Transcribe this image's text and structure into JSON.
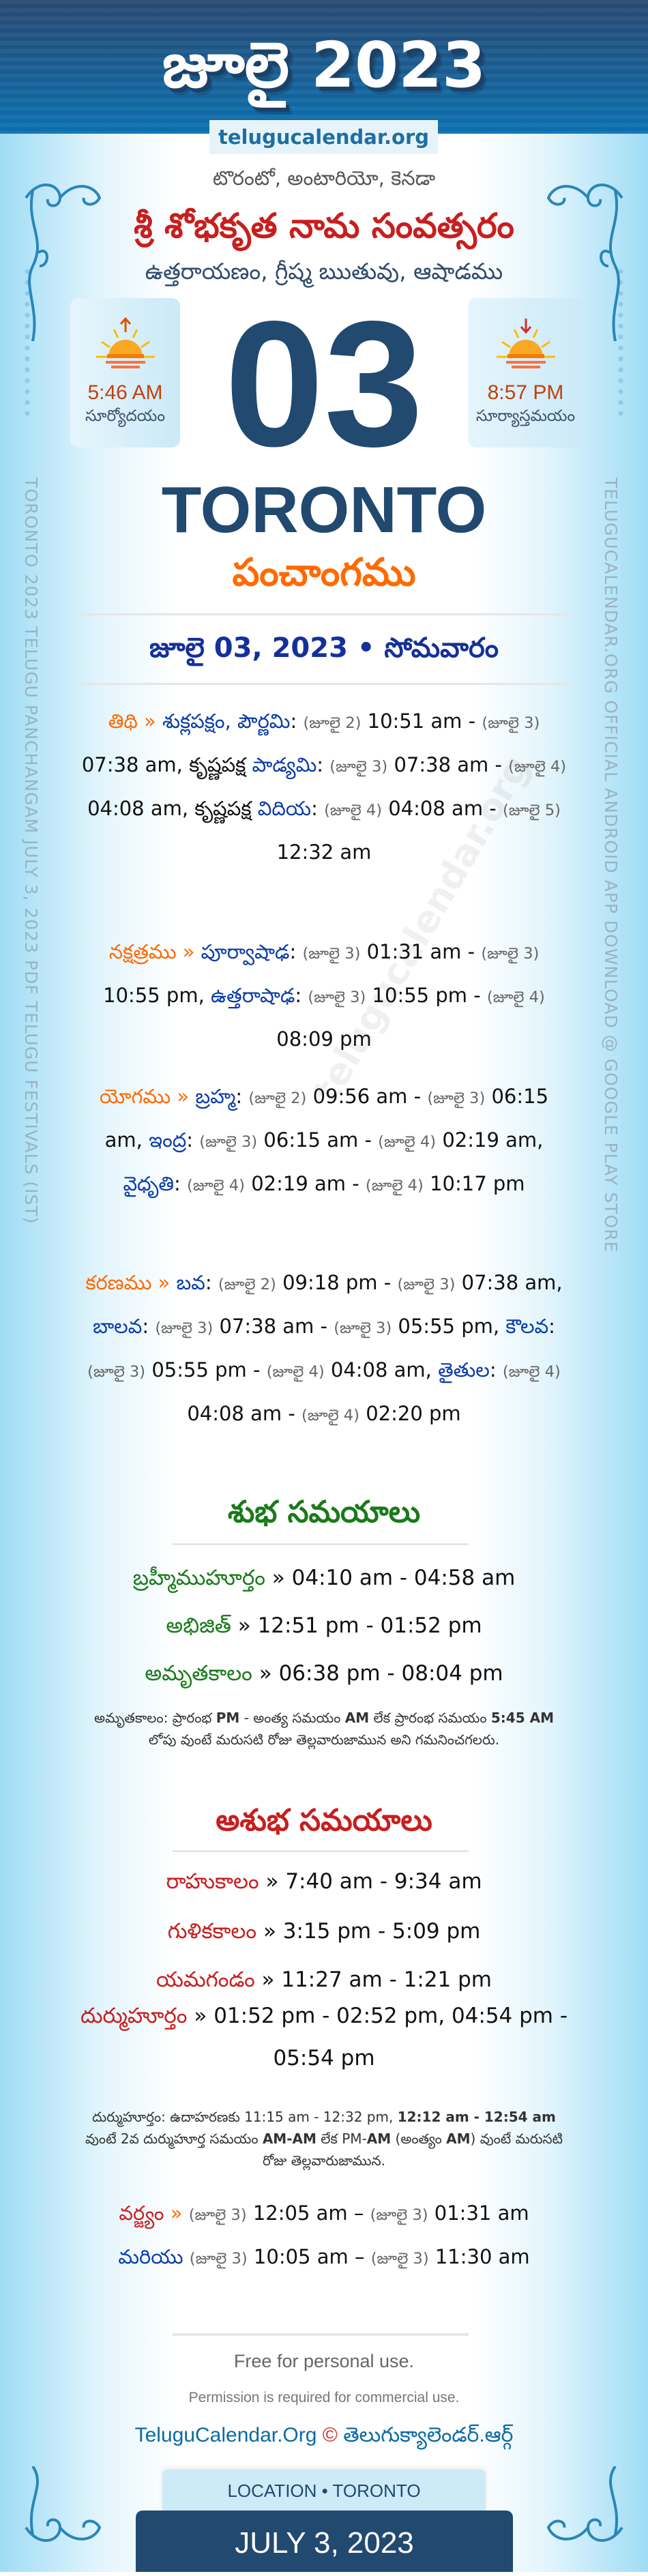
{
  "header": {
    "title": "జూలై 2023",
    "site": "telugucalendar.org"
  },
  "location_te": "టొరంటో, అంటారియో, కెనడా",
  "samvatsaram": "శ్రీ శోభకృత నామ సంవత్సరం",
  "ayanam": "ఉత్తరాయణం, గ్రీష్మ ఋతువు, ఆషాడము",
  "sunrise": {
    "time": "5:46 AM",
    "label": "సూర్యోదయం",
    "icon": "sunrise-icon"
  },
  "sunset": {
    "time": "8:57 PM",
    "label": "సూర్యాస్తమయం",
    "icon": "sunset-icon"
  },
  "day": "03",
  "city": "TORONTO",
  "panchangam_title": "పంచాంగము",
  "date_line": "జూలై 03, 2023 • సోమవారం",
  "side_left": "TORONTO 2023 TELUGU PANCHANGAM JULY 3, 2023 PDF TELUGU FESTIVALS (IST)",
  "side_right": "TELUGUCALENDAR.ORG OFFICIAL ANDROID APP DOWNLOAD @ GOOGLE PLAY STORE",
  "watermark": "telugucalendar.org",
  "panchang": [
    {
      "label": "తిథి",
      "segments": [
        {
          "k": "s",
          "v": " » "
        },
        {
          "k": "n",
          "v": "శుక్లపక్షం, పౌర్ణమి"
        },
        {
          "k": "t",
          "v": ": "
        },
        {
          "k": "d",
          "v": "(జూలై 2)"
        },
        {
          "k": "t",
          "v": " 10:51 am - "
        },
        {
          "k": "d",
          "v": "(జూలై 3)"
        },
        {
          "k": "t",
          "v": " 07:38 am, కృష్ణపక్ష "
        },
        {
          "k": "n",
          "v": "పాడ్యమి"
        },
        {
          "k": "t",
          "v": ": "
        },
        {
          "k": "d",
          "v": "(జూలై 3)"
        },
        {
          "k": "t",
          "v": " 07:38 am - "
        },
        {
          "k": "d",
          "v": "(జూలై 4)"
        },
        {
          "k": "t",
          "v": " 04:08 am, కృష్ణపక్ష "
        },
        {
          "k": "n",
          "v": "విదియ"
        },
        {
          "k": "t",
          "v": ": "
        },
        {
          "k": "d",
          "v": "(జూలై 4)"
        },
        {
          "k": "t",
          "v": " 04:08 am - "
        },
        {
          "k": "d",
          "v": "(జూలై 5)"
        },
        {
          "k": "t",
          "v": " 12:32 am"
        }
      ]
    },
    {
      "label": "నక్షత్రము",
      "segments": [
        {
          "k": "s",
          "v": " » "
        },
        {
          "k": "n",
          "v": "పూర్వాషాఢ"
        },
        {
          "k": "t",
          "v": ": "
        },
        {
          "k": "d",
          "v": "(జూలై 3)"
        },
        {
          "k": "t",
          "v": " 01:31 am - "
        },
        {
          "k": "d",
          "v": "(జూలై 3)"
        },
        {
          "k": "t",
          "v": " 10:55 pm, "
        },
        {
          "k": "n",
          "v": "ఉత్తరాషాఢ"
        },
        {
          "k": "t",
          "v": ": "
        },
        {
          "k": "d",
          "v": "(జూలై 3)"
        },
        {
          "k": "t",
          "v": " 10:55 pm - "
        },
        {
          "k": "d",
          "v": "(జూలై 4)"
        },
        {
          "k": "t",
          "v": " 08:09 pm"
        }
      ]
    },
    {
      "label": "యోగము",
      "segments": [
        {
          "k": "s",
          "v": " » "
        },
        {
          "k": "n",
          "v": "బ్రహ్మ"
        },
        {
          "k": "t",
          "v": ": "
        },
        {
          "k": "d",
          "v": "(జూలై 2)"
        },
        {
          "k": "t",
          "v": " 09:56 am - "
        },
        {
          "k": "d",
          "v": "(జూలై 3)"
        },
        {
          "k": "t",
          "v": " 06:15 am, "
        },
        {
          "k": "n",
          "v": "ఇంద్ర"
        },
        {
          "k": "t",
          "v": ": "
        },
        {
          "k": "d",
          "v": "(జూలై 3)"
        },
        {
          "k": "t",
          "v": " 06:15 am - "
        },
        {
          "k": "d",
          "v": "(జూలై 4)"
        },
        {
          "k": "t",
          "v": " 02:19 am, "
        },
        {
          "k": "n",
          "v": "వైధృతి"
        },
        {
          "k": "t",
          "v": ": "
        },
        {
          "k": "d",
          "v": "(జూలై 4)"
        },
        {
          "k": "t",
          "v": " 02:19 am - "
        },
        {
          "k": "d",
          "v": "(జూలై 4)"
        },
        {
          "k": "t",
          "v": " 10:17 pm"
        }
      ]
    },
    {
      "label": "కరణము",
      "segments": [
        {
          "k": "s",
          "v": " » "
        },
        {
          "k": "n",
          "v": "బవ"
        },
        {
          "k": "t",
          "v": ": "
        },
        {
          "k": "d",
          "v": "(జూలై 2)"
        },
        {
          "k": "t",
          "v": " 09:18 pm - "
        },
        {
          "k": "d",
          "v": "(జూలై 3)"
        },
        {
          "k": "t",
          "v": " 07:38 am, "
        },
        {
          "k": "n",
          "v": "బాలవ"
        },
        {
          "k": "t",
          "v": ": "
        },
        {
          "k": "d",
          "v": "(జూలై 3)"
        },
        {
          "k": "t",
          "v": " 07:38 am - "
        },
        {
          "k": "d",
          "v": "(జూలై 3)"
        },
        {
          "k": "t",
          "v": " 05:55 pm, "
        },
        {
          "k": "n",
          "v": "కౌలవ"
        },
        {
          "k": "t",
          "v": ": "
        },
        {
          "k": "d",
          "v": "(జూలై 3)"
        },
        {
          "k": "t",
          "v": " 05:55 pm - "
        },
        {
          "k": "d",
          "v": "(జూలై 4)"
        },
        {
          "k": "t",
          "v": " 04:08 am, "
        },
        {
          "k": "n",
          "v": "తైతుల"
        },
        {
          "k": "t",
          "v": ": "
        },
        {
          "k": "d",
          "v": "(జూలై 4)"
        },
        {
          "k": "t",
          "v": " 04:08 am - "
        },
        {
          "k": "d",
          "v": "(జూలై 4)"
        },
        {
          "k": "t",
          "v": " 02:20 pm"
        }
      ]
    }
  ],
  "shubha": {
    "title": "శుభ సమయాలు",
    "color": "#1a7a1a",
    "items": [
      {
        "label": "బ్రహ్మీముహూర్తం",
        "value": " » 04:10 am - 04:58 am"
      },
      {
        "label": "అభిజిత్",
        "value": " » 12:51 pm - 01:52 pm"
      },
      {
        "label": "అమృతకాలం",
        "value": " » 06:38 pm - 08:04 pm"
      }
    ],
    "note": [
      {
        "v": "అమృతకాలం: ప్రారంభ "
      },
      {
        "v": "PM",
        "b": true
      },
      {
        "v": " - అంత్య సమయం "
      },
      {
        "v": "AM",
        "b": true
      },
      {
        "v": " లేక ప్రారంభ సమయం "
      },
      {
        "v": "5:45 AM",
        "b": true
      },
      {
        "v": " లోపు వుంటే మరుసటి రోజు తెల్లవారుజామున అని గమనించగలరు."
      }
    ]
  },
  "ashubha": {
    "title": "అశుభ సమయాలు",
    "color": "#c81e1e",
    "items": [
      {
        "label": "రాహుకాలం",
        "value": " » 7:40 am - 9:34 am"
      },
      {
        "label": "గుళికకాలం",
        "value": " » 3:15 pm - 5:09 pm"
      },
      {
        "label": "యమగండం",
        "value": " » 11:27 am - 1:21 pm"
      },
      {
        "label": "దుర్ముహూర్తం",
        "value": " » 01:52 pm - 02:52 pm, 04:54 pm - 05:54 pm"
      }
    ],
    "note": [
      {
        "v": "దుర్ముహూర్తం: ఉదాహరణకు 11:15 am - 12:32 pm, "
      },
      {
        "v": "12:12 am - 12:54 am",
        "b": true
      },
      {
        "v": " వుంటే 2వ దుర్ముహూర్త సమయం "
      },
      {
        "v": "AM-AM",
        "b": true
      },
      {
        "v": " లేక PM-"
      },
      {
        "v": "AM",
        "b": true
      },
      {
        "v": " (అంత్యం "
      },
      {
        "v": "AM",
        "b": true
      },
      {
        "v": ") వుంటే మరుసటి రోజు తెల్లవారుజామున."
      }
    ],
    "varjyam": [
      {
        "k": "l",
        "v": "వర్జ్యం"
      },
      {
        "k": "s",
        "v": " » "
      },
      {
        "k": "d",
        "v": "(జూలై 3)"
      },
      {
        "k": "t",
        "v": " 12:05 am – "
      },
      {
        "k": "d",
        "v": "(జూలై 3)"
      },
      {
        "k": "t",
        "v": " 01:31 am "
      },
      {
        "k": "n",
        "v": "మరియు"
      },
      {
        "k": "t",
        "v": " "
      },
      {
        "k": "d",
        "v": "(జూలై 3)"
      },
      {
        "k": "t",
        "v": " 10:05 am – "
      },
      {
        "k": "d",
        "v": "(జూలై 3)"
      },
      {
        "k": "t",
        "v": " 11:30 am"
      }
    ]
  },
  "footer": {
    "free": "Free for personal use.",
    "permission": "Permission is required for commercial use.",
    "brand_en": "TeluguCalendar.Org",
    "copyright": "©",
    "brand_te": "తెలుగుక్యాలెండర్.ఆర్గ్",
    "location_tab": "LOCATION • TORONTO",
    "date": "JULY 3, 2023"
  },
  "colors": {
    "navy": "#22496f",
    "orange": "#ff6a00",
    "blue": "#0a3ca8",
    "red": "#c81e1e",
    "green": "#1a7a1a"
  }
}
